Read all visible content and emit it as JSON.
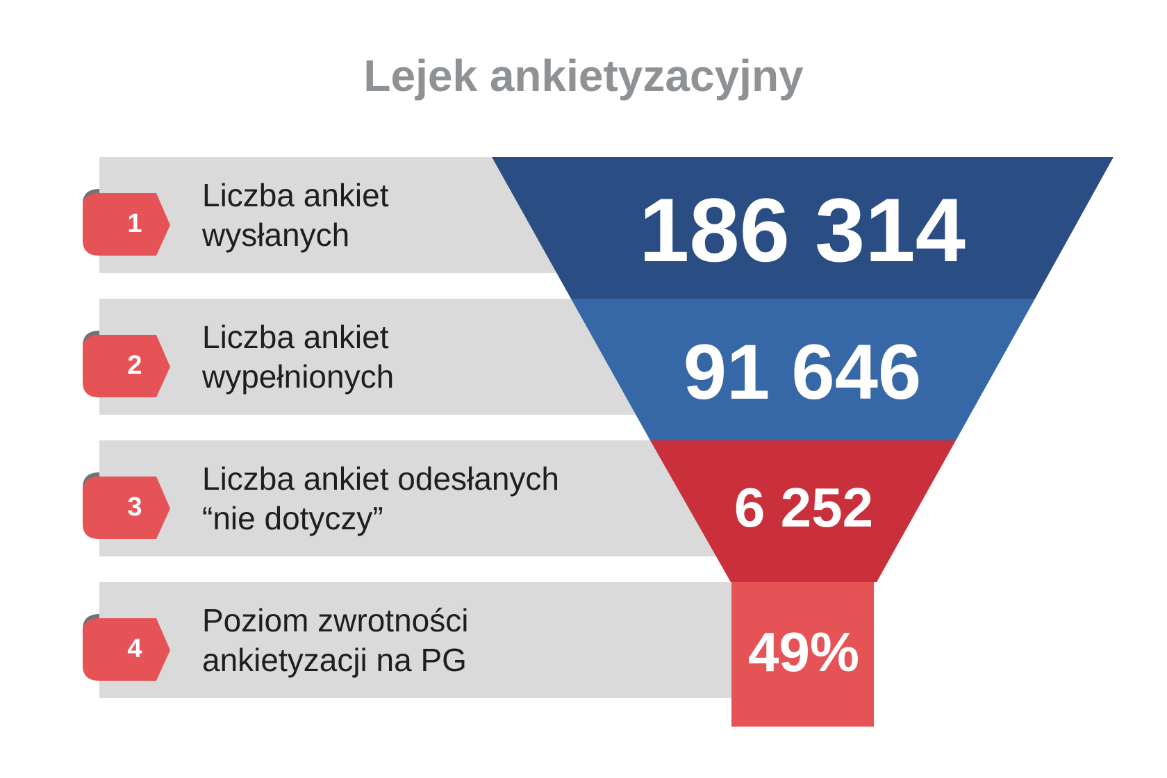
{
  "title": "Lejek ankietyzacyjny",
  "colors": {
    "step1": "#2a4e83",
    "step2": "#3667a7",
    "step3": "#c9303b",
    "step4": "#e65356",
    "badge": "#e65356",
    "badge_tab": "#707377",
    "bar": "#dadada",
    "title": "#8f9295"
  },
  "steps": [
    {
      "number": "1",
      "label_line1": "Liczba ankiet",
      "label_line2": "wysłanych",
      "value": "186 314"
    },
    {
      "number": "2",
      "label_line1": "Liczba ankiet",
      "label_line2": "wypełnionych",
      "value": "91 646"
    },
    {
      "number": "3",
      "label_line1": "Liczba ankiet odesłanych",
      "label_line2": "“nie dotyczy”",
      "value": "6 252"
    },
    {
      "number": "4",
      "label_line1": "Poziom zwrotności",
      "label_line2": "ankietyzacji na PG",
      "value": "49%"
    }
  ]
}
